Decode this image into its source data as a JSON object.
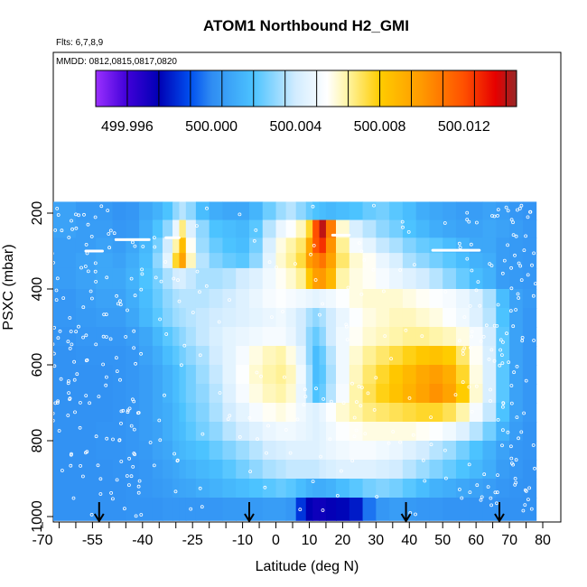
{
  "chart_data": {
    "type": "heatmap",
    "title": "ATOM1 Northbound H2_GMI",
    "annotations": [
      "Flts: 6,7,8,9",
      "MMDD: 0812,0815,0817,0820"
    ],
    "xlabel": "Latitude (deg N)",
    "ylabel": "PSXC (mbar)",
    "xlim": [
      -70,
      80
    ],
    "ylim": [
      1000,
      160
    ],
    "y_reversed": true,
    "grid": false,
    "x_ticks": [
      -70,
      -55,
      -40,
      -25,
      -10,
      0,
      10,
      20,
      30,
      40,
      50,
      60,
      70,
      80
    ],
    "x_tick_labels": [
      "-70",
      "-55",
      "-40",
      "-25",
      "-10",
      "0",
      "10",
      "20",
      "30",
      "40",
      "50",
      "60",
      "70",
      "80"
    ],
    "y_ticks": [
      200,
      400,
      600,
      800,
      1000
    ],
    "y_tick_labels": [
      "200",
      "400",
      "600",
      "800",
      "1000"
    ],
    "colorbar": {
      "min": 499.9945,
      "max": 500.0145,
      "tick_values": [
        499.996,
        500.0,
        500.004,
        500.008,
        500.012
      ],
      "tick_labels": [
        "499.996",
        "500.000",
        "500.004",
        "500.008",
        "500.012"
      ],
      "stops": [
        {
          "v": 499.9945,
          "c": "#9b30ff"
        },
        {
          "v": 499.996,
          "c": "#3f00d8"
        },
        {
          "v": 499.9975,
          "c": "#0000b4"
        },
        {
          "v": 499.999,
          "c": "#0050f0"
        },
        {
          "v": 500.0,
          "c": "#2f8cf2"
        },
        {
          "v": 500.002,
          "c": "#4cc3ff"
        },
        {
          "v": 500.004,
          "c": "#d2ecff"
        },
        {
          "v": 500.0055,
          "c": "#ffffff"
        },
        {
          "v": 500.0065,
          "c": "#fff4a0"
        },
        {
          "v": 500.008,
          "c": "#ffcc00"
        },
        {
          "v": 500.01,
          "c": "#ff9900"
        },
        {
          "v": 500.012,
          "c": "#ff5000"
        },
        {
          "v": 500.0135,
          "c": "#e60000"
        },
        {
          "v": 500.0145,
          "c": "#962828"
        }
      ]
    },
    "lat_edges": [
      -68,
      -60,
      -54,
      -49,
      -45,
      -41,
      -37,
      -34,
      -31,
      -29,
      -27,
      -24,
      -20,
      -16,
      -12,
      -8,
      -4,
      0,
      3,
      6,
      9,
      11,
      13,
      15,
      18,
      22,
      26,
      30,
      34,
      38,
      42,
      46,
      50,
      54,
      58,
      62,
      66,
      70,
      74,
      78
    ],
    "pressure_bands": [
      {
        "top": 170,
        "bottom": 218,
        "values": [
          500.0008,
          500.0005,
          500.0005,
          500.0003,
          500.0004,
          500.001,
          500.0014,
          500.002,
          500.003,
          500.0036,
          500.003,
          500.0018,
          500.0012,
          500.001,
          500.001,
          500.0015,
          500.0025,
          500.0032,
          500.0036,
          500.003,
          500.0024,
          500.002,
          500.0018,
          500.0016,
          500.0018,
          500.002,
          500.0024,
          500.0026,
          500.0022,
          500.0018,
          500.0012,
          500.001,
          500.0008,
          500.0006,
          500.0006,
          500.0008,
          500.0006,
          500.0004,
          500.0003
        ]
      },
      {
        "top": 218,
        "bottom": 265,
        "values": [
          500.0008,
          500.0006,
          500.0006,
          500.0004,
          500.0005,
          500.0012,
          500.002,
          500.003,
          500.0048,
          500.0068,
          500.0044,
          500.003,
          500.002,
          500.0018,
          500.0016,
          500.0022,
          500.0036,
          500.0048,
          500.0054,
          500.0062,
          500.0076,
          500.012,
          500.014,
          500.0108,
          500.006,
          500.0042,
          500.0036,
          500.003,
          500.0026,
          500.002,
          500.0016,
          500.0012,
          500.001,
          500.0008,
          500.0008,
          500.001,
          500.0008,
          500.0006,
          500.0004
        ]
      },
      {
        "top": 265,
        "bottom": 305,
        "values": [
          500.0006,
          500.0006,
          500.0008,
          500.0006,
          500.001,
          500.0016,
          500.0026,
          500.004,
          500.0064,
          500.0086,
          500.0056,
          500.0032,
          500.0024,
          500.002,
          500.0018,
          500.0026,
          500.0042,
          500.0058,
          500.0064,
          500.007,
          500.0094,
          500.0118,
          500.0126,
          500.0102,
          500.0066,
          500.0052,
          500.0046,
          500.0038,
          500.0034,
          500.0028,
          500.0024,
          500.0022,
          500.0018,
          500.0014,
          500.001,
          500.001,
          500.0006,
          500.0005,
          500.0004
        ]
      },
      {
        "top": 305,
        "bottom": 345,
        "values": [
          500.0006,
          500.0008,
          500.001,
          500.0008,
          500.0012,
          500.0018,
          500.003,
          500.0046,
          500.0076,
          500.0096,
          500.0062,
          500.0036,
          500.0028,
          500.0024,
          500.0022,
          500.003,
          500.0046,
          500.006,
          500.0066,
          500.0074,
          500.0098,
          500.0104,
          500.011,
          500.0096,
          500.007,
          500.006,
          500.0056,
          500.0048,
          500.0042,
          500.0034,
          500.003,
          500.0026,
          500.0022,
          500.0018,
          500.0014,
          500.0012,
          500.0006,
          500.0005,
          500.0004
        ]
      },
      {
        "top": 345,
        "bottom": 400,
        "values": [
          500.0006,
          500.0008,
          500.001,
          500.001,
          500.0014,
          500.002,
          500.0026,
          500.0034,
          500.004,
          500.0042,
          500.0038,
          500.0034,
          500.0034,
          500.0036,
          500.004,
          500.0044,
          500.005,
          500.0056,
          500.006,
          500.0066,
          500.0082,
          500.0098,
          500.01,
          500.0088,
          500.0064,
          500.0058,
          500.0056,
          500.0052,
          500.0048,
          500.0044,
          500.004,
          500.0036,
          500.003,
          500.0024,
          500.0018,
          500.0014,
          500.0006,
          500.0005,
          500.0004
        ]
      },
      {
        "top": 400,
        "bottom": 450,
        "values": [
          500.0004,
          500.0006,
          500.0008,
          500.0008,
          500.0012,
          500.0018,
          500.0024,
          500.003,
          500.0034,
          500.0036,
          500.0036,
          500.0036,
          500.0038,
          500.004,
          500.0044,
          500.0048,
          500.0052,
          500.0054,
          500.0052,
          500.005,
          500.0048,
          500.0046,
          500.0048,
          500.005,
          500.0054,
          500.0058,
          500.006,
          500.006,
          500.006,
          500.0058,
          500.0056,
          500.0054,
          500.0052,
          500.0048,
          500.0042,
          500.0034,
          500.0018,
          500.0008,
          500.0005
        ]
      },
      {
        "top": 450,
        "bottom": 500,
        "values": [
          500.0004,
          500.0005,
          500.0006,
          500.0006,
          500.001,
          500.0016,
          500.0022,
          500.0028,
          500.0032,
          500.0034,
          500.0036,
          500.0038,
          500.004,
          500.0042,
          500.0044,
          500.0046,
          500.0048,
          500.005,
          500.0046,
          500.004,
          500.0034,
          500.003,
          500.0034,
          500.004,
          500.0048,
          500.0054,
          500.0058,
          500.006,
          500.0062,
          500.0062,
          500.006,
          500.0058,
          500.0054,
          500.005,
          500.0044,
          500.0036,
          500.002,
          500.0008,
          500.0004
        ]
      },
      {
        "top": 500,
        "bottom": 550,
        "values": [
          500.0003,
          500.0004,
          500.0004,
          500.0004,
          500.0006,
          500.001,
          500.0016,
          500.0022,
          500.0026,
          500.003,
          500.0034,
          500.0038,
          500.0042,
          500.0046,
          500.0048,
          500.005,
          500.0052,
          500.0052,
          500.0048,
          500.004,
          500.003,
          500.0024,
          500.003,
          500.004,
          500.005,
          500.0056,
          500.006,
          500.0062,
          500.0064,
          500.0066,
          500.0066,
          500.0064,
          500.0062,
          500.0058,
          500.0052,
          500.004,
          500.0022,
          500.0008,
          500.0004
        ]
      },
      {
        "top": 550,
        "bottom": 600,
        "values": [
          500.0002,
          500.0003,
          500.0003,
          500.0003,
          500.0004,
          500.0008,
          500.0012,
          500.0018,
          500.0022,
          500.0026,
          500.003,
          500.0034,
          500.004,
          500.0046,
          500.0052,
          500.0058,
          500.0062,
          500.0064,
          500.0058,
          500.0046,
          500.003,
          500.0018,
          500.0024,
          500.0036,
          500.005,
          500.006,
          500.0066,
          500.007,
          500.0074,
          500.0078,
          500.0082,
          500.0084,
          500.008,
          500.007,
          500.0056,
          500.0042,
          500.0022,
          500.0008,
          500.0004
        ]
      },
      {
        "top": 600,
        "bottom": 650,
        "values": [
          500.0002,
          500.0002,
          500.0002,
          500.0003,
          500.0004,
          500.0006,
          500.001,
          500.0014,
          500.0018,
          500.0022,
          500.0026,
          500.0032,
          500.0038,
          500.0046,
          500.0054,
          500.006,
          500.0064,
          500.0066,
          500.0062,
          500.005,
          500.0034,
          500.0018,
          500.0022,
          500.0034,
          500.005,
          500.0062,
          500.007,
          500.0076,
          500.0082,
          500.0088,
          500.0094,
          500.0098,
          500.0092,
          500.0076,
          500.0058,
          500.0042,
          500.0022,
          500.0008,
          500.0004
        ]
      },
      {
        "top": 650,
        "bottom": 700,
        "values": [
          500.0002,
          500.0002,
          500.0002,
          500.0003,
          500.0004,
          500.0006,
          500.001,
          500.0014,
          500.0018,
          500.0022,
          500.0026,
          500.003,
          500.0036,
          500.0044,
          500.0052,
          500.0058,
          500.0062,
          500.0064,
          500.006,
          500.0048,
          500.0034,
          500.002,
          500.0024,
          500.0036,
          500.0052,
          500.0064,
          500.0072,
          500.0078,
          500.0084,
          500.009,
          500.0096,
          500.0102,
          500.0096,
          500.008,
          500.006,
          500.0042,
          500.0022,
          500.0008,
          500.0004
        ]
      },
      {
        "top": 700,
        "bottom": 750,
        "values": [
          500.0002,
          500.0002,
          500.0002,
          500.0003,
          500.0004,
          500.0006,
          500.001,
          500.0012,
          500.0016,
          500.002,
          500.0024,
          500.0028,
          500.0034,
          500.004,
          500.0046,
          500.0052,
          500.0056,
          500.0058,
          500.0056,
          500.005,
          500.0046,
          500.0044,
          500.0048,
          500.0054,
          500.006,
          500.0064,
          500.0068,
          500.007,
          500.0072,
          500.0074,
          500.0076,
          500.0076,
          500.0072,
          500.0064,
          500.0052,
          500.0038,
          500.002,
          500.0008,
          500.0004
        ]
      },
      {
        "top": 750,
        "bottom": 800,
        "values": [
          500.0002,
          500.0002,
          500.0003,
          500.0003,
          500.0004,
          500.0006,
          500.0008,
          500.0012,
          500.0016,
          500.0018,
          500.0022,
          500.0026,
          500.003,
          500.0036,
          500.004,
          500.0044,
          500.0048,
          500.005,
          500.005,
          500.0048,
          500.0046,
          500.0044,
          500.0046,
          500.005,
          500.0054,
          500.0056,
          500.0058,
          500.0058,
          500.0058,
          500.0058,
          500.0056,
          500.0054,
          500.005,
          500.0044,
          500.0036,
          500.0026,
          500.0014,
          500.0006,
          500.0003
        ]
      },
      {
        "top": 800,
        "bottom": 850,
        "values": [
          500.0002,
          500.0002,
          500.0003,
          500.0003,
          500.0004,
          500.0005,
          500.0008,
          500.001,
          500.0014,
          500.0016,
          500.0018,
          500.002,
          500.0024,
          500.0028,
          500.0032,
          500.0036,
          500.004,
          500.0042,
          500.0044,
          500.0044,
          500.0044,
          500.0044,
          500.0046,
          500.0048,
          500.005,
          500.0052,
          500.0052,
          500.005,
          500.0048,
          500.0044,
          500.004,
          500.0036,
          500.0032,
          500.0026,
          500.002,
          500.0014,
          500.0008,
          500.0004,
          500.0003
        ]
      },
      {
        "top": 850,
        "bottom": 900,
        "values": [
          500.0002,
          500.0002,
          500.0002,
          500.0003,
          500.0003,
          500.0004,
          500.0006,
          500.0008,
          500.001,
          500.0012,
          500.0014,
          500.0016,
          500.0018,
          500.0022,
          500.0026,
          500.003,
          500.0034,
          500.0036,
          500.0038,
          500.0038,
          500.0038,
          500.0038,
          500.004,
          500.0042,
          500.0044,
          500.0044,
          500.0044,
          500.0042,
          500.004,
          500.0036,
          500.0032,
          500.0028,
          500.0024,
          500.002,
          500.0016,
          500.0012,
          500.0006,
          500.0004,
          500.0002
        ]
      },
      {
        "top": 900,
        "bottom": 950,
        "values": [
          500.0002,
          500.0002,
          500.0002,
          500.0002,
          500.0003,
          500.0004,
          500.0005,
          500.0006,
          500.0008,
          500.0009,
          500.001,
          500.0012,
          500.0014,
          500.0016,
          500.0018,
          500.002,
          500.0022,
          500.0024,
          500.0022,
          500.0018,
          500.0014,
          500.0012,
          500.0012,
          500.0014,
          500.0018,
          500.0022,
          500.0026,
          500.0028,
          500.0026,
          500.0022,
          500.0018,
          500.0014,
          500.0012,
          500.001,
          500.0008,
          500.0006,
          500.0004,
          500.0003,
          500.0002
        ]
      },
      {
        "top": 950,
        "bottom": 1010,
        "values": [
          500.0002,
          500.0002,
          500.0002,
          500.0002,
          500.0003,
          500.0003,
          500.0003,
          500.0004,
          500.0004,
          500.0004,
          500.0004,
          500.0004,
          500.0004,
          500.0005,
          500.0005,
          500.0005,
          500.0006,
          500.0006,
          500.0004,
          499.9985,
          499.9975,
          499.9972,
          499.9972,
          499.9974,
          499.9976,
          499.998,
          499.9996,
          500.0004,
          500.0006,
          500.0005,
          500.0004,
          500.0004,
          500.0003,
          500.0003,
          500.0003,
          500.0003,
          500.0002,
          500.0002,
          500.0002
        ]
      }
    ],
    "white_streaks": [
      {
        "lat1": -48,
        "lat2": -38,
        "p": 270
      },
      {
        "lat1": 17,
        "lat2": 22,
        "p": 258
      },
      {
        "lat1": 47,
        "lat2": 61,
        "p": 298
      },
      {
        "lat1": -57,
        "lat2": -52,
        "p": 300
      },
      {
        "lat1": -33,
        "lat2": -29,
        "p": 265
      }
    ],
    "arrow_latitudes": [
      -53,
      -8,
      39,
      67
    ]
  },
  "colors": {
    "axis": "#000000",
    "text": "#000000",
    "marker": "#ffffff"
  }
}
